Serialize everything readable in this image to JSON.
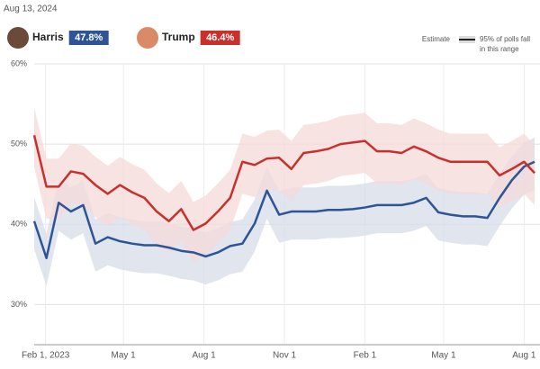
{
  "date": "Aug 13, 2024",
  "chart_data": {
    "type": "line",
    "x": [
      "2023-01-19",
      "2023-02-02",
      "2023-02-16",
      "2023-03-02",
      "2023-03-16",
      "2023-03-30",
      "2023-04-13",
      "2023-04-27",
      "2023-05-11",
      "2023-05-25",
      "2023-06-08",
      "2023-06-22",
      "2023-07-06",
      "2023-07-20",
      "2023-08-03",
      "2023-08-17",
      "2023-08-31",
      "2023-09-14",
      "2023-09-28",
      "2023-10-12",
      "2023-10-26",
      "2023-11-09",
      "2023-11-23",
      "2023-12-07",
      "2023-12-21",
      "2024-01-04",
      "2024-01-18",
      "2024-02-01",
      "2024-02-15",
      "2024-02-29",
      "2024-03-14",
      "2024-03-28",
      "2024-04-11",
      "2024-04-25",
      "2024-05-09",
      "2024-05-23",
      "2024-06-06",
      "2024-06-20",
      "2024-07-04",
      "2024-07-18",
      "2024-08-01",
      "2024-08-13"
    ],
    "xlim": [
      "2023-01-19",
      "2024-08-13"
    ],
    "xticks": [
      {
        "value": "2023-02-01",
        "label": "Feb 1, 2023"
      },
      {
        "value": "2023-05-01",
        "label": "May 1"
      },
      {
        "value": "2023-08-01",
        "label": "Aug 1"
      },
      {
        "value": "2023-11-01",
        "label": "Nov 1"
      },
      {
        "value": "2024-02-01",
        "label": "Feb 1"
      },
      {
        "value": "2024-05-01",
        "label": "May 1"
      },
      {
        "value": "2024-08-01",
        "label": "Aug 1"
      }
    ],
    "ylim": [
      25,
      60
    ],
    "yticks": [
      {
        "value": 30,
        "label": "30%"
      },
      {
        "value": 40,
        "label": "40%"
      },
      {
        "value": 50,
        "label": "50%"
      },
      {
        "value": 60,
        "label": "60%"
      }
    ],
    "grid": true,
    "legend": {
      "line": "Estimate",
      "band": [
        "95% of polls fall",
        "in this range"
      ]
    },
    "series": [
      {
        "name": "Harris",
        "latest_label": "47.8%",
        "color": "#2f5496",
        "band_color": "#d6dce8",
        "values": [
          40.4,
          35.8,
          42.7,
          41.6,
          42.4,
          37.6,
          38.4,
          37.9,
          37.6,
          37.4,
          37.4,
          37.1,
          36.7,
          36.5,
          36.0,
          36.5,
          37.3,
          37.6,
          40.1,
          44.2,
          41.2,
          41.6,
          41.6,
          41.6,
          41.8,
          41.8,
          41.9,
          42.1,
          42.4,
          42.4,
          42.4,
          42.7,
          43.3,
          41.5,
          41.2,
          41.0,
          41.0,
          40.8,
          43.3,
          45.5,
          47.2,
          47.8
        ],
        "upper": [
          43.4,
          38.8,
          45.7,
          44.6,
          45.4,
          40.6,
          41.4,
          40.9,
          40.6,
          40.4,
          40.4,
          40.1,
          39.7,
          39.5,
          39.0,
          39.5,
          40.3,
          40.6,
          43.1,
          47.2,
          44.2,
          44.6,
          44.6,
          44.6,
          44.8,
          44.8,
          44.9,
          45.1,
          45.4,
          45.4,
          45.4,
          45.7,
          46.3,
          44.5,
          44.2,
          44.0,
          44.0,
          43.8,
          46.3,
          48.5,
          50.2,
          50.8
        ],
        "lower": [
          36.9,
          32.3,
          39.2,
          38.1,
          38.9,
          34.1,
          34.9,
          34.4,
          34.1,
          33.9,
          33.9,
          33.6,
          33.2,
          33.0,
          32.5,
          33.0,
          33.8,
          34.1,
          36.6,
          40.7,
          37.7,
          38.1,
          38.1,
          38.1,
          38.3,
          38.3,
          38.4,
          38.6,
          38.9,
          38.9,
          38.9,
          39.2,
          39.8,
          38.0,
          37.7,
          37.5,
          37.5,
          37.3,
          39.8,
          42.0,
          43.7,
          44.3
        ]
      },
      {
        "name": "Trump",
        "latest_label": "46.4%",
        "color": "#c9302c",
        "band_color": "#f6dada",
        "values": [
          51.1,
          44.7,
          44.7,
          46.6,
          46.3,
          44.9,
          43.8,
          44.9,
          44.0,
          43.3,
          41.6,
          40.4,
          41.9,
          39.3,
          40.1,
          41.6,
          43.3,
          47.8,
          47.4,
          48.2,
          48.3,
          46.9,
          48.9,
          49.1,
          49.4,
          50.0,
          50.2,
          50.4,
          49.1,
          49.1,
          48.9,
          49.7,
          49.1,
          48.3,
          47.8,
          47.8,
          47.8,
          47.8,
          46.1,
          46.9,
          47.8,
          46.4
        ],
        "upper": [
          54.6,
          48.2,
          48.2,
          50.1,
          49.8,
          48.4,
          47.3,
          48.4,
          47.5,
          46.8,
          45.1,
          43.9,
          45.4,
          42.8,
          43.6,
          45.1,
          46.8,
          51.3,
          50.9,
          51.7,
          51.8,
          50.4,
          52.4,
          52.6,
          52.9,
          53.5,
          53.7,
          53.9,
          52.6,
          52.6,
          52.4,
          53.2,
          52.6,
          51.8,
          51.3,
          51.3,
          51.3,
          51.3,
          49.6,
          50.4,
          51.3,
          49.9
        ],
        "lower": [
          47.1,
          40.7,
          40.7,
          42.6,
          42.3,
          40.9,
          39.8,
          40.9,
          40.0,
          39.3,
          37.6,
          36.4,
          37.9,
          35.3,
          36.1,
          37.6,
          39.3,
          43.8,
          43.4,
          44.2,
          44.3,
          42.9,
          44.9,
          45.1,
          45.4,
          46.0,
          46.2,
          46.4,
          45.1,
          45.1,
          44.9,
          45.7,
          45.1,
          44.3,
          43.8,
          43.8,
          43.8,
          43.8,
          42.1,
          42.9,
          43.8,
          42.4
        ]
      }
    ]
  }
}
